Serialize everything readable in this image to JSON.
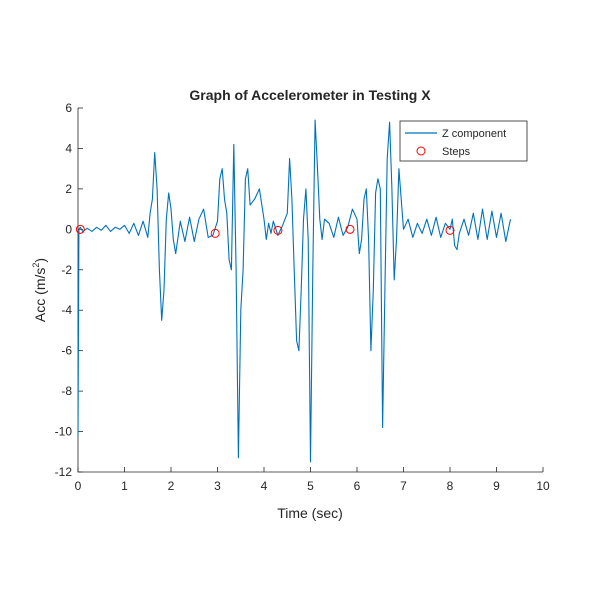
{
  "chart_data": {
    "type": "line",
    "title": "Graph of Accelerometer in Testing X",
    "xlabel": "Time (sec)",
    "ylabel": "Acc (m/s",
    "ylabel_superscript": "2",
    "ylabel_suffix": ")",
    "xlim": [
      0,
      10
    ],
    "ylim": [
      -12,
      6
    ],
    "x_ticks": [
      0,
      1,
      2,
      3,
      4,
      5,
      6,
      7,
      8,
      9,
      10
    ],
    "y_ticks": [
      -12,
      -10,
      -8,
      -6,
      -4,
      -2,
      0,
      2,
      4,
      6
    ],
    "grid": false,
    "legend_position": "top-right",
    "series": [
      {
        "name": "Z component",
        "color": "#0072BD",
        "x": [
          0.0,
          0.02,
          0.05,
          0.1,
          0.2,
          0.3,
          0.4,
          0.5,
          0.6,
          0.7,
          0.8,
          0.9,
          1.0,
          1.1,
          1.2,
          1.3,
          1.4,
          1.5,
          1.55,
          1.6,
          1.65,
          1.7,
          1.75,
          1.8,
          1.85,
          1.9,
          1.95,
          2.0,
          2.05,
          2.1,
          2.15,
          2.2,
          2.3,
          2.4,
          2.5,
          2.6,
          2.7,
          2.8,
          2.9,
          3.0,
          3.05,
          3.1,
          3.15,
          3.2,
          3.25,
          3.3,
          3.35,
          3.4,
          3.45,
          3.5,
          3.55,
          3.6,
          3.65,
          3.7,
          3.8,
          3.9,
          4.0,
          4.05,
          4.1,
          4.15,
          4.2,
          4.3,
          4.4,
          4.5,
          4.55,
          4.6,
          4.65,
          4.7,
          4.75,
          4.8,
          4.85,
          4.9,
          4.95,
          5.0,
          5.05,
          5.1,
          5.15,
          5.2,
          5.25,
          5.3,
          5.4,
          5.5,
          5.6,
          5.7,
          5.8,
          5.9,
          6.0,
          6.05,
          6.1,
          6.15,
          6.2,
          6.25,
          6.3,
          6.35,
          6.4,
          6.45,
          6.5,
          6.55,
          6.6,
          6.65,
          6.7,
          6.75,
          6.8,
          6.85,
          6.9,
          7.0,
          7.1,
          7.2,
          7.3,
          7.4,
          7.5,
          7.6,
          7.7,
          7.8,
          7.9,
          8.0,
          8.05,
          8.1,
          8.15,
          8.2,
          8.3,
          8.4,
          8.5,
          8.6,
          8.7,
          8.8,
          8.9,
          9.0,
          9.1,
          9.2,
          9.3
        ],
        "values": [
          -10.2,
          0.0,
          0.1,
          -0.1,
          0.05,
          -0.1,
          0.1,
          -0.05,
          0.2,
          -0.1,
          0.1,
          0.0,
          0.2,
          -0.2,
          0.3,
          -0.3,
          0.4,
          -0.4,
          0.8,
          1.5,
          3.8,
          2.0,
          -2.0,
          -4.5,
          -3.0,
          0.5,
          1.8,
          1.0,
          -0.5,
          -1.2,
          -0.4,
          0.4,
          -0.6,
          0.6,
          -0.6,
          0.5,
          1.0,
          -0.4,
          -0.3,
          0.4,
          2.5,
          3.0,
          1.5,
          0.8,
          -1.5,
          -2.0,
          4.2,
          -2.0,
          -11.3,
          -4.0,
          -2.0,
          2.5,
          3.0,
          1.2,
          1.5,
          2.0,
          0.5,
          -0.5,
          0.3,
          -0.2,
          0.4,
          -0.3,
          0.2,
          0.8,
          3.5,
          1.5,
          -2.0,
          -5.5,
          -6.0,
          -3.0,
          0.5,
          2.0,
          -0.5,
          -11.5,
          -2.0,
          5.4,
          3.0,
          0.5,
          -0.5,
          0.5,
          0.3,
          -0.4,
          0.6,
          -0.3,
          0.1,
          1.0,
          0.5,
          -1.2,
          -0.5,
          1.5,
          2.0,
          -0.5,
          -6.0,
          -3.0,
          1.8,
          2.5,
          2.0,
          -9.8,
          -3.0,
          3.5,
          5.3,
          2.0,
          -2.5,
          -0.5,
          3.0,
          0.0,
          0.5,
          -0.4,
          0.3,
          -0.2,
          0.5,
          -0.3,
          0.6,
          -0.4,
          0.3,
          0.0,
          0.5,
          -0.8,
          -1.0,
          -0.2,
          0.5,
          -0.3,
          0.8,
          -0.5,
          1.0,
          -0.5,
          0.9,
          -0.4,
          0.8,
          -0.6,
          0.5
        ]
      },
      {
        "name": "Steps",
        "color": "#FF0000",
        "marker": "circle",
        "x": [
          0.05,
          2.95,
          4.3,
          5.85,
          8.0
        ],
        "values": [
          0.0,
          -0.2,
          -0.05,
          0.0,
          -0.05
        ]
      }
    ]
  }
}
